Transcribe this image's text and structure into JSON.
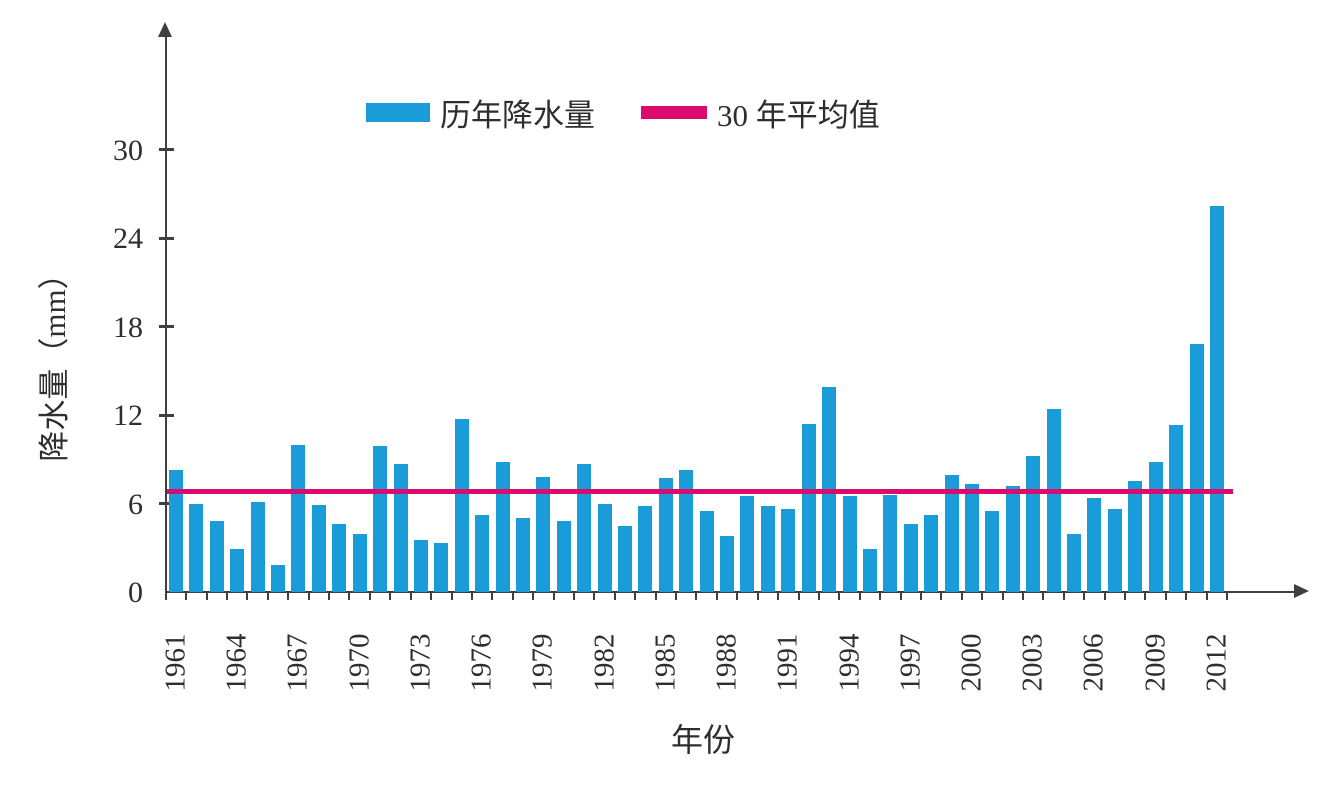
{
  "colors": {
    "bar": "#199cd8",
    "average_line": "#dc0a6e",
    "axis": "#3f3f3f",
    "text": "#2e2e2e",
    "background": "#ffffff"
  },
  "legend": {
    "bar_label": "历年降水量",
    "line_label": "30 年平均值"
  },
  "chart_data": {
    "type": "bar",
    "title": "",
    "xlabel": "年份",
    "ylabel": "降水量（mm）",
    "ylim": [
      0,
      32
    ],
    "yticks": [
      0,
      6,
      12,
      18,
      24,
      30
    ],
    "grid": false,
    "legend_position": "top",
    "x_labeled_ticks": [
      "1961",
      "1964",
      "1967",
      "1970",
      "1973",
      "1976",
      "1979",
      "1982",
      "1985",
      "1988",
      "1991",
      "1994",
      "1997",
      "2000",
      "2003",
      "2006",
      "2009",
      "2012"
    ],
    "categories": [
      "1961",
      "1962",
      "1963",
      "1964",
      "1965",
      "1966",
      "1967",
      "1968",
      "1969",
      "1970",
      "1971",
      "1972",
      "1973",
      "1974",
      "1975",
      "1976",
      "1977",
      "1978",
      "1979",
      "1980",
      "1981",
      "1982",
      "1983",
      "1984",
      "1985",
      "1986",
      "1987",
      "1988",
      "1989",
      "1990",
      "1991",
      "1992",
      "1993",
      "1994",
      "1995",
      "1996",
      "1997",
      "1998",
      "1999",
      "2000",
      "2001",
      "2002",
      "2003",
      "2004",
      "2005",
      "2006",
      "2007",
      "2008",
      "2009",
      "2010",
      "2011",
      "2012"
    ],
    "series": [
      {
        "name": "历年降水量",
        "type": "bar",
        "color": "#199cd8",
        "values": [
          8.3,
          6.0,
          4.8,
          2.9,
          6.1,
          1.8,
          10.0,
          5.9,
          4.6,
          3.9,
          9.9,
          8.7,
          3.5,
          3.3,
          11.7,
          5.2,
          8.8,
          5.0,
          7.8,
          4.8,
          8.7,
          6.0,
          4.5,
          5.8,
          7.7,
          8.3,
          5.5,
          3.8,
          6.5,
          5.8,
          5.6,
          11.4,
          13.9,
          6.5,
          2.9,
          6.6,
          4.6,
          5.2,
          7.9,
          7.3,
          5.5,
          7.2,
          9.2,
          12.4,
          3.9,
          6.4,
          5.6,
          7.5,
          8.8,
          11.3,
          16.8,
          26.2
        ]
      },
      {
        "name": "30 年平均值",
        "type": "hline",
        "color": "#dc0a6e",
        "value": 6.8
      }
    ]
  }
}
